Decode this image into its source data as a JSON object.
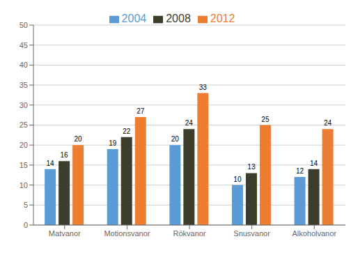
{
  "chart_data": {
    "type": "bar",
    "categories": [
      "Matvanor",
      "Motionsvanor",
      "Rökvanor",
      "Snusvanor",
      "Alkoholvanor"
    ],
    "series": [
      {
        "name": "2004",
        "color": "#5B9BD5",
        "values": [
          14,
          19,
          20,
          10,
          12
        ]
      },
      {
        "name": "2008",
        "color": "#3D3D2B",
        "values": [
          16,
          22,
          24,
          13,
          14
        ]
      },
      {
        "name": "2012",
        "color": "#ED7D31",
        "values": [
          20,
          27,
          33,
          25,
          24
        ]
      }
    ],
    "ylim": [
      0,
      50
    ],
    "yticks": [
      0,
      5,
      10,
      15,
      20,
      25,
      30,
      35,
      40,
      45,
      50
    ],
    "grid": true,
    "legend": "top",
    "data_labels": true
  }
}
